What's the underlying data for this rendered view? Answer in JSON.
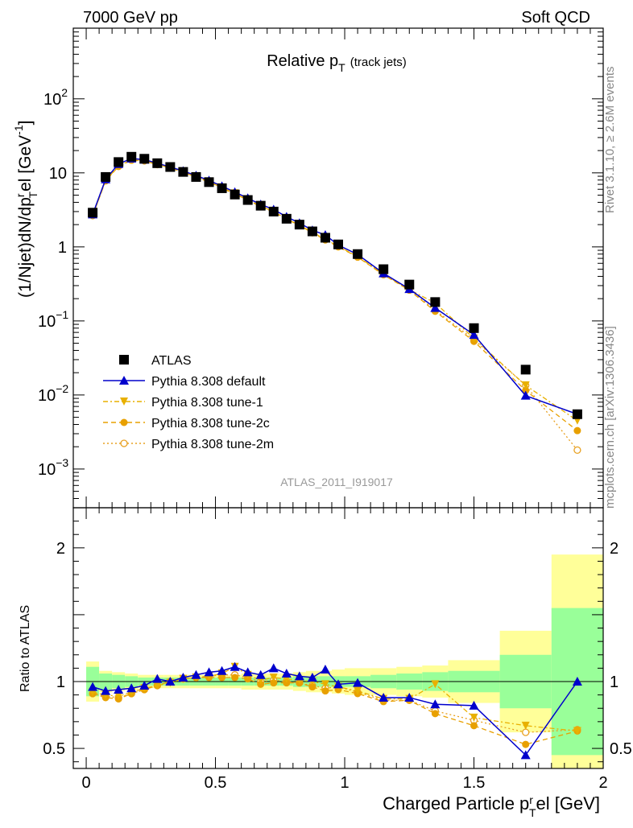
{
  "header": {
    "left": "7000 GeV pp",
    "right": "Soft QCD"
  },
  "side_labels": {
    "rivet": "Rivet 3.1.10, ≥ 2.6M events",
    "mcplots": "mcplots.cern.ch [arXiv:1306.3436]"
  },
  "analysis_id": "ATLAS_2011_I919017",
  "colors": {
    "data": "#000000",
    "default": "#0000cc",
    "tune1": "#e8b000",
    "tune2c": "#e8a000",
    "tune2m": "#e8a020",
    "band_inner": "#99ff99",
    "band_outer": "#ffff99"
  },
  "chart_data": [
    {
      "type": "line",
      "title_main": "Relative p",
      "title_sub": "T",
      "title_extra": "(track jets)",
      "ylabel": "(1/Njet)dN/dp",
      "ylabel_sub": "T",
      "ylabel_sup": "r",
      "ylabel_tail": "el [GeV",
      "ylabel_unit_sup": "-1",
      "ylabel_close": "]",
      "yscale": "log",
      "ylim": [
        0.0003,
        900
      ],
      "xlim": [
        -0.05,
        2.0
      ],
      "yticks": [
        {
          "value": 0.001,
          "base": "10",
          "exp": "−3"
        },
        {
          "value": 0.01,
          "base": "10",
          "exp": "−2"
        },
        {
          "value": 0.1,
          "base": "10",
          "exp": "−1"
        },
        {
          "value": 1,
          "base": "1",
          "exp": ""
        },
        {
          "value": 10,
          "base": "10",
          "exp": ""
        },
        {
          "value": 100,
          "base": "10",
          "exp": "2"
        }
      ],
      "legend": [
        {
          "key": "data",
          "label": "ATLAS"
        },
        {
          "key": "default",
          "label": "Pythia 8.308 default"
        },
        {
          "key": "tune1",
          "label": "Pythia 8.308 tune-1"
        },
        {
          "key": "tune2c",
          "label": "Pythia 8.308 tune-2c"
        },
        {
          "key": "tune2m",
          "label": "Pythia 8.308 tune-2m"
        }
      ],
      "x": [
        0.025,
        0.075,
        0.125,
        0.175,
        0.225,
        0.275,
        0.325,
        0.375,
        0.425,
        0.475,
        0.525,
        0.575,
        0.625,
        0.675,
        0.725,
        0.775,
        0.825,
        0.875,
        0.925,
        0.975,
        1.05,
        1.15,
        1.25,
        1.35,
        1.5,
        1.7,
        1.9
      ],
      "series": [
        {
          "key": "data",
          "name": "ATLAS",
          "values": [
            2.9,
            8.8,
            14.0,
            16.5,
            15.5,
            13.5,
            12.0,
            10.3,
            8.8,
            7.5,
            6.2,
            5.1,
            4.3,
            3.6,
            3.0,
            2.4,
            2.0,
            1.62,
            1.33,
            1.08,
            0.8,
            0.5,
            0.31,
            0.18,
            0.08,
            0.022,
            0.0055
          ]
        },
        {
          "key": "default",
          "name": "Pythia 8.308 default",
          "values": [
            2.75,
            8.2,
            13.2,
            15.6,
            15.1,
            13.5,
            12.0,
            10.6,
            9.2,
            7.9,
            6.6,
            5.5,
            4.55,
            3.75,
            3.2,
            2.55,
            2.1,
            1.68,
            1.45,
            1.06,
            0.79,
            0.44,
            0.27,
            0.15,
            0.065,
            0.0098,
            0.0055
          ]
        },
        {
          "key": "tune1",
          "name": "Pythia 8.308 tune-1",
          "values": [
            2.65,
            7.9,
            12.4,
            15.0,
            14.7,
            13.0,
            11.7,
            10.3,
            8.9,
            7.6,
            6.3,
            5.3,
            4.35,
            3.55,
            3.0,
            2.4,
            1.97,
            1.58,
            1.27,
            1.02,
            0.74,
            0.43,
            0.265,
            0.175,
            0.058,
            0.0135,
            0.0045
          ]
        },
        {
          "key": "tune2c",
          "name": "Pythia 8.308 tune-2c",
          "values": [
            2.65,
            7.8,
            12.2,
            14.8,
            14.5,
            12.9,
            11.6,
            10.2,
            8.8,
            7.5,
            6.2,
            5.2,
            4.3,
            3.5,
            2.95,
            2.37,
            1.95,
            1.55,
            1.24,
            1.0,
            0.73,
            0.42,
            0.26,
            0.135,
            0.053,
            0.0115,
            0.0033
          ]
        },
        {
          "key": "tune2m",
          "name": "Pythia 8.308 tune-2m",
          "values": [
            2.65,
            7.8,
            12.3,
            14.9,
            14.6,
            13.0,
            11.7,
            10.3,
            8.9,
            7.6,
            6.3,
            5.25,
            4.35,
            3.55,
            3.0,
            2.4,
            1.97,
            1.57,
            1.26,
            1.02,
            0.73,
            0.425,
            0.265,
            0.14,
            0.056,
            0.0135,
            0.0018
          ]
        }
      ]
    },
    {
      "type": "line",
      "ylabel": "Ratio to ATLAS",
      "xlabel_main": "Charged Particle p",
      "xlabel_sup": "r",
      "xlabel_sub": "T",
      "xlabel_tail": "el [GeV]",
      "ylim": [
        0.35,
        2.3
      ],
      "xlim": [
        -0.05,
        2.0
      ],
      "yticks": [
        0.5,
        1,
        2
      ],
      "xticks": [
        0,
        0.5,
        1,
        1.5,
        2
      ],
      "band_edges": [
        0.0,
        0.05,
        0.1,
        0.15,
        0.2,
        0.25,
        0.3,
        0.35,
        0.4,
        0.45,
        0.5,
        0.55,
        0.6,
        0.65,
        0.7,
        0.75,
        0.8,
        0.85,
        0.9,
        0.95,
        1.0,
        1.1,
        1.2,
        1.3,
        1.4,
        1.6,
        1.8,
        2.0
      ],
      "band_inner": [
        0.11,
        0.06,
        0.05,
        0.04,
        0.03,
        0.03,
        0.03,
        0.03,
        0.03,
        0.03,
        0.03,
        0.03,
        0.03,
        0.03,
        0.03,
        0.03,
        0.04,
        0.04,
        0.04,
        0.04,
        0.04,
        0.05,
        0.06,
        0.07,
        0.08,
        0.2,
        0.55
      ],
      "band_outer": [
        0.15,
        0.08,
        0.07,
        0.06,
        0.05,
        0.05,
        0.05,
        0.05,
        0.05,
        0.05,
        0.05,
        0.05,
        0.06,
        0.06,
        0.06,
        0.06,
        0.07,
        0.08,
        0.08,
        0.09,
        0.1,
        0.1,
        0.11,
        0.12,
        0.16,
        0.38,
        0.95
      ],
      "series": [
        {
          "key": "default",
          "name": "Pythia 8.308 default",
          "values": [
            0.96,
            0.93,
            0.94,
            0.95,
            0.97,
            1.02,
            1.0,
            1.03,
            1.05,
            1.07,
            1.08,
            1.11,
            1.07,
            1.05,
            1.1,
            1.06,
            1.04,
            1.03,
            1.09,
            0.98,
            0.99,
            0.88,
            0.88,
            0.83,
            0.82,
            0.45,
            1.0
          ]
        },
        {
          "key": "tune1",
          "name": "Pythia 8.308 tune-1",
          "values": [
            0.92,
            0.9,
            0.89,
            0.92,
            0.95,
            0.97,
            0.99,
            1.02,
            1.03,
            1.04,
            1.06,
            1.11,
            1.05,
            1.01,
            1.03,
            1.02,
            1.01,
            1.0,
            0.98,
            0.96,
            0.93,
            0.87,
            0.87,
            0.98,
            0.73,
            0.67,
            0.63
          ]
        },
        {
          "key": "tune2c",
          "name": "Pythia 8.308 tune-2c",
          "values": [
            0.91,
            0.88,
            0.87,
            0.91,
            0.94,
            0.97,
            1.0,
            1.02,
            1.03,
            1.03,
            1.03,
            1.03,
            1.02,
            0.98,
            0.99,
            0.99,
            0.99,
            0.96,
            0.93,
            0.94,
            0.91,
            0.85,
            0.86,
            0.76,
            0.67,
            0.53,
            0.63
          ]
        },
        {
          "key": "tune2m",
          "name": "Pythia 8.308 tune-2m",
          "values": [
            0.91,
            0.89,
            0.88,
            0.91,
            0.94,
            0.97,
            1.0,
            1.02,
            1.03,
            1.04,
            1.05,
            1.05,
            1.03,
            1.0,
            1.01,
            1.0,
            0.99,
            0.97,
            0.95,
            0.96,
            0.92,
            0.86,
            0.86,
            0.78,
            0.71,
            0.62,
            0.64
          ]
        }
      ]
    }
  ]
}
